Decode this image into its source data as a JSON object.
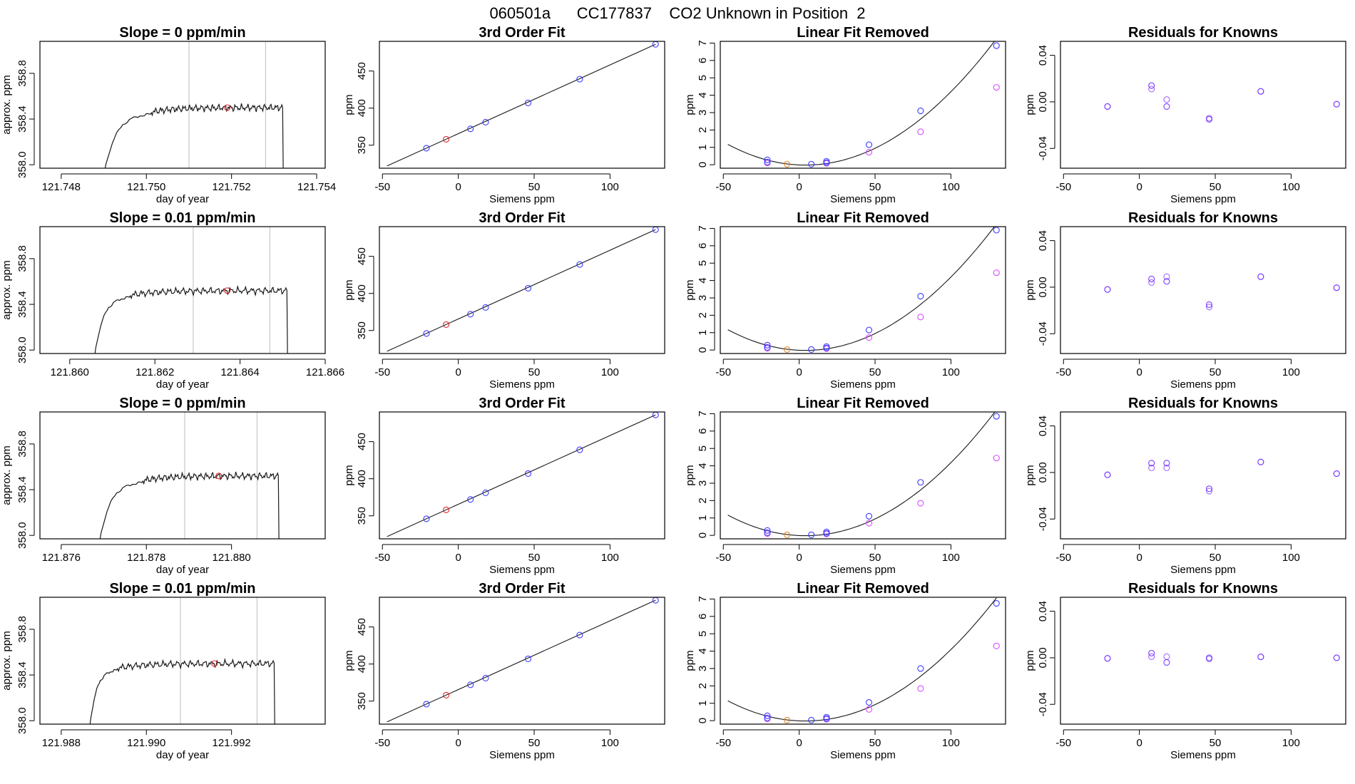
{
  "figure": {
    "title": "060501a      CC177837    CO2 Unknown in Position  2"
  },
  "chart_data": [
    {
      "type": "line",
      "title": "Slope =  0  ppm/min",
      "xlabel": "day of year",
      "ylabel": "approx. ppm",
      "xlim": [
        121.7475,
        121.7542
      ],
      "ylim": [
        357.97,
        359.08
      ],
      "xticks": [
        121.748,
        121.75,
        121.752,
        121.754
      ],
      "xticklabels": [
        "121.748",
        "121.750",
        "121.752",
        "121.754"
      ],
      "yticks": [
        358.0,
        358.4,
        358.8
      ],
      "yticklabels": [
        "358.0",
        "358.4",
        "358.8"
      ],
      "vlines": [
        121.751,
        121.7528
      ],
      "start": 121.7489,
      "plateau": 121.7501,
      "end": 121.7532,
      "level": 358.5,
      "marker": {
        "x": 121.7519,
        "y": 358.5
      }
    },
    {
      "type": "line",
      "title": "3rd Order Fit",
      "xlabel": "Siemens ppm",
      "ylabel": "ppm",
      "xlim": [
        -52,
        136
      ],
      "ylim": [
        319,
        490
      ],
      "xticks": [
        -50,
        0,
        50,
        100
      ],
      "xticklabels": [
        "-50",
        "0",
        "50",
        "100"
      ],
      "yticks": [
        350,
        400,
        450
      ],
      "yticklabels": [
        "350",
        "400",
        "450"
      ],
      "fit_x": [
        -47,
        130
      ],
      "fit_y": [
        322,
        486
      ],
      "known": {
        "x": [
          -21,
          8,
          18,
          46,
          80,
          130
        ],
        "y": [
          346,
          372,
          381,
          407,
          439,
          486
        ]
      },
      "unknown": {
        "x": [
          -8
        ],
        "y": [
          358
        ]
      }
    },
    {
      "type": "scatter",
      "title": "Linear Fit Removed",
      "xlabel": "Siemens ppm",
      "ylabel": "ppm",
      "xlim": [
        -52,
        136
      ],
      "ylim": [
        -0.2,
        7.1
      ],
      "xticks": [
        -50,
        0,
        50,
        100
      ],
      "xticklabels": [
        "-50",
        "0",
        "50",
        "100"
      ],
      "yticks": [
        0,
        1,
        2,
        3,
        4,
        5,
        6,
        7
      ],
      "yticklabels": [
        "0",
        "1",
        "2",
        "3",
        "4",
        "5",
        "6",
        "7"
      ],
      "fit_curve": {
        "x_from": -47,
        "x_to": 130,
        "vertex_x": 4,
        "vertex_y": -0.02,
        "a": 0.000458
      },
      "known": {
        "x": [
          -21,
          -21,
          8,
          18,
          18,
          46,
          80,
          130
        ],
        "y": [
          0.28,
          0.15,
          0.03,
          0.2,
          0.12,
          1.15,
          3.1,
          6.85
        ]
      },
      "raw": {
        "x": [
          -21,
          18,
          46,
          80,
          130
        ],
        "y": [
          0.1,
          0.08,
          0.72,
          1.9,
          4.45
        ]
      },
      "unknown": {
        "x": [
          -8
        ],
        "y": [
          0.03
        ]
      }
    },
    {
      "type": "scatter",
      "title": "Residuals for Knowns",
      "xlabel": "Siemens ppm",
      "ylabel": "ppm",
      "xlim": [
        -52,
        136
      ],
      "ylim": [
        -0.057,
        0.052
      ],
      "xticks": [
        -50,
        0,
        50,
        100
      ],
      "xticklabels": [
        "-50",
        "0",
        "50",
        "100"
      ],
      "yticks": [
        -0.04,
        0.0,
        0.04
      ],
      "yticklabels": [
        "-0.04",
        "0.00",
        "0.04"
      ],
      "set_a": {
        "x": [
          -21,
          8,
          18,
          46,
          80,
          130
        ],
        "y": [
          -0.004,
          0.014,
          -0.004,
          -0.015,
          0.009,
          -0.002
        ]
      },
      "set_b": {
        "x": [
          -21,
          8,
          18,
          46,
          80,
          130
        ],
        "y": [
          -0.004,
          0.011,
          0.002,
          -0.014,
          0.009,
          -0.002
        ]
      }
    },
    {
      "type": "line",
      "title": "Slope =  0.01  ppm/min",
      "xlabel": "day of year",
      "ylabel": "approx. ppm",
      "xlim": [
        121.8593,
        121.866
      ],
      "ylim": [
        357.97,
        359.08
      ],
      "xticks": [
        121.86,
        121.862,
        121.864,
        121.866
      ],
      "xticklabels": [
        "121.860",
        "121.862",
        "121.864",
        "121.866"
      ],
      "yticks": [
        358.0,
        358.4,
        358.8
      ],
      "yticklabels": [
        "358.0",
        "358.4",
        "358.8"
      ],
      "vlines": [
        121.8629,
        121.8647
      ],
      "start": 121.8605,
      "plateau": 121.8614,
      "end": 121.8651,
      "level": 358.52,
      "marker": {
        "x": 121.8637,
        "y": 358.52
      }
    },
    {
      "type": "line",
      "title": "3rd Order Fit",
      "xlabel": "Siemens ppm",
      "ylabel": "ppm",
      "xlim": [
        -52,
        136
      ],
      "ylim": [
        319,
        490
      ],
      "xticks": [
        -50,
        0,
        50,
        100
      ],
      "xticklabels": [
        "-50",
        "0",
        "50",
        "100"
      ],
      "yticks": [
        350,
        400,
        450
      ],
      "yticklabels": [
        "350",
        "400",
        "450"
      ],
      "fit_x": [
        -47,
        130
      ],
      "fit_y": [
        322,
        486
      ],
      "known": {
        "x": [
          -21,
          8,
          18,
          46,
          80,
          130
        ],
        "y": [
          346,
          372,
          381,
          407,
          439,
          486
        ]
      },
      "unknown": {
        "x": [
          -8
        ],
        "y": [
          358
        ]
      }
    },
    {
      "type": "scatter",
      "title": "Linear Fit Removed",
      "xlabel": "Siemens ppm",
      "ylabel": "ppm",
      "xlim": [
        -52,
        136
      ],
      "ylim": [
        -0.2,
        7.1
      ],
      "xticks": [
        -50,
        0,
        50,
        100
      ],
      "xticklabels": [
        "-50",
        "0",
        "50",
        "100"
      ],
      "yticks": [
        0,
        1,
        2,
        3,
        4,
        5,
        6,
        7
      ],
      "yticklabels": [
        "0",
        "1",
        "2",
        "3",
        "4",
        "5",
        "6",
        "7"
      ],
      "fit_curve": {
        "x_from": -47,
        "x_to": 130,
        "vertex_x": 4,
        "vertex_y": -0.02,
        "a": 0.000458
      },
      "known": {
        "x": [
          -21,
          -21,
          8,
          18,
          18,
          46,
          80,
          130
        ],
        "y": [
          0.28,
          0.15,
          0.03,
          0.2,
          0.12,
          1.15,
          3.1,
          6.9
        ]
      },
      "raw": {
        "x": [
          -21,
          18,
          46,
          80,
          130
        ],
        "y": [
          0.1,
          0.08,
          0.72,
          1.9,
          4.45
        ]
      },
      "unknown": {
        "x": [
          -8
        ],
        "y": [
          0.03
        ]
      }
    },
    {
      "type": "scatter",
      "title": "Residuals for Knowns",
      "xlabel": "Siemens ppm",
      "ylabel": "ppm",
      "xlim": [
        -52,
        136
      ],
      "ylim": [
        -0.057,
        0.052
      ],
      "xticks": [
        -50,
        0,
        50,
        100
      ],
      "xticklabels": [
        "-50",
        "0",
        "50",
        "100"
      ],
      "yticks": [
        -0.04,
        0.0,
        0.04
      ],
      "yticklabels": [
        "-0.04",
        "0.00",
        "0.04"
      ],
      "set_a": {
        "x": [
          -21,
          8,
          18,
          46,
          80,
          130
        ],
        "y": [
          -0.002,
          0.007,
          0.005,
          -0.015,
          0.009,
          -0.0005
        ]
      },
      "set_b": {
        "x": [
          -21,
          8,
          18,
          46,
          80,
          130
        ],
        "y": [
          -0.002,
          0.004,
          0.009,
          -0.017,
          0.009,
          -0.0005
        ]
      }
    },
    {
      "type": "line",
      "title": "Slope =  0  ppm/min",
      "xlabel": "day of year",
      "ylabel": "approx. ppm",
      "xlim": [
        121.8755,
        121.8822
      ],
      "ylim": [
        357.97,
        359.08
      ],
      "xticks": [
        121.876,
        121.878,
        121.88
      ],
      "xticklabels": [
        "121.876",
        "121.878",
        "121.880"
      ],
      "yticks": [
        358.0,
        358.4,
        358.8
      ],
      "yticklabels": [
        "358.0",
        "358.4",
        "358.8"
      ],
      "vlines": [
        121.8789,
        121.8806
      ],
      "start": 121.8768,
      "plateau": 121.8779,
      "end": 121.8811,
      "level": 358.52,
      "marker": {
        "x": 121.8797,
        "y": 358.52
      }
    },
    {
      "type": "line",
      "title": "3rd Order Fit",
      "xlabel": "Siemens ppm",
      "ylabel": "ppm",
      "xlim": [
        -52,
        136
      ],
      "ylim": [
        319,
        490
      ],
      "xticks": [
        -50,
        0,
        50,
        100
      ],
      "xticklabels": [
        "-50",
        "0",
        "50",
        "100"
      ],
      "yticks": [
        350,
        400,
        450
      ],
      "yticklabels": [
        "350",
        "400",
        "450"
      ],
      "fit_x": [
        -47,
        130
      ],
      "fit_y": [
        322,
        486
      ],
      "known": {
        "x": [
          -21,
          8,
          18,
          46,
          80,
          130
        ],
        "y": [
          346,
          372,
          381,
          407,
          439,
          486
        ]
      },
      "unknown": {
        "x": [
          -8
        ],
        "y": [
          358
        ]
      }
    },
    {
      "type": "scatter",
      "title": "Linear Fit Removed",
      "xlabel": "Siemens ppm",
      "ylabel": "ppm",
      "xlim": [
        -52,
        136
      ],
      "ylim": [
        -0.2,
        7.1
      ],
      "xticks": [
        -50,
        0,
        50,
        100
      ],
      "xticklabels": [
        "-50",
        "0",
        "50",
        "100"
      ],
      "yticks": [
        0,
        1,
        2,
        3,
        4,
        5,
        6,
        7
      ],
      "yticklabels": [
        "0",
        "1",
        "2",
        "3",
        "4",
        "5",
        "6",
        "7"
      ],
      "fit_curve": {
        "x_from": -47,
        "x_to": 130,
        "vertex_x": 4,
        "vertex_y": -0.02,
        "a": 0.000456
      },
      "known": {
        "x": [
          -21,
          -21,
          8,
          18,
          18,
          46,
          80,
          130
        ],
        "y": [
          0.28,
          0.15,
          0.03,
          0.2,
          0.12,
          1.1,
          3.05,
          6.85
        ]
      },
      "raw": {
        "x": [
          -21,
          18,
          46,
          80,
          130
        ],
        "y": [
          0.1,
          0.08,
          0.7,
          1.85,
          4.45
        ]
      },
      "unknown": {
        "x": [
          -8
        ],
        "y": [
          0.03
        ]
      }
    },
    {
      "type": "scatter",
      "title": "Residuals for Knowns",
      "xlabel": "Siemens ppm",
      "ylabel": "ppm",
      "xlim": [
        -52,
        136
      ],
      "ylim": [
        -0.057,
        0.052
      ],
      "xticks": [
        -50,
        0,
        50,
        100
      ],
      "xticklabels": [
        "-50",
        "0",
        "50",
        "100"
      ],
      "set_a": {
        "x": [
          -21,
          8,
          18,
          46,
          80,
          130
        ],
        "y": [
          -0.002,
          0.008,
          0.008,
          -0.014,
          0.009,
          -0.001
        ]
      },
      "set_b": {
        "x": [
          -21,
          8,
          18,
          46,
          80,
          130
        ],
        "y": [
          -0.002,
          0.004,
          0.004,
          -0.016,
          0.009,
          -0.001
        ]
      },
      "yticks": [
        -0.04,
        0.0,
        0.04
      ],
      "yticklabels": [
        "-0.04",
        "0.00",
        "0.04"
      ]
    },
    {
      "type": "line",
      "title": "Slope =  0.01  ppm/min",
      "xlabel": "day of year",
      "ylabel": "approx. ppm",
      "xlim": [
        121.9875,
        121.9942
      ],
      "ylim": [
        357.97,
        359.08
      ],
      "xticks": [
        121.988,
        121.99,
        121.992
      ],
      "xticklabels": [
        "121.988",
        "121.990",
        "121.992"
      ],
      "yticks": [
        358.0,
        358.4,
        358.8
      ],
      "yticklabels": [
        "358.0",
        "358.4",
        "358.8"
      ],
      "vlines": [
        121.9908,
        121.9926
      ],
      "start": 121.9886,
      "plateau": 121.9893,
      "end": 121.993,
      "level": 358.5,
      "marker": {
        "x": 121.9916,
        "y": 358.5
      }
    },
    {
      "type": "line",
      "title": "3rd Order Fit",
      "xlabel": "Siemens ppm",
      "ylabel": "ppm",
      "xlim": [
        -52,
        136
      ],
      "ylim": [
        319,
        490
      ],
      "xticks": [
        -50,
        0,
        50,
        100
      ],
      "xticklabels": [
        "-50",
        "0",
        "50",
        "100"
      ],
      "yticks": [
        350,
        400,
        450
      ],
      "yticklabels": [
        "350",
        "400",
        "450"
      ],
      "fit_x": [
        -47,
        130
      ],
      "fit_y": [
        322,
        486
      ],
      "known": {
        "x": [
          -21,
          8,
          18,
          46,
          80,
          130
        ],
        "y": [
          346,
          372,
          381,
          407,
          439,
          486
        ]
      },
      "unknown": {
        "x": [
          -8
        ],
        "y": [
          358
        ]
      }
    },
    {
      "type": "scatter",
      "title": "Linear Fit Removed",
      "xlabel": "Siemens ppm",
      "ylabel": "ppm",
      "xlim": [
        -52,
        136
      ],
      "ylim": [
        -0.2,
        7.1
      ],
      "xticks": [
        -50,
        0,
        50,
        100
      ],
      "xticklabels": [
        "-50",
        "0",
        "50",
        "100"
      ],
      "yticks": [
        0,
        1,
        2,
        3,
        4,
        5,
        6,
        7
      ],
      "yticklabels": [
        "0",
        "1",
        "2",
        "3",
        "4",
        "5",
        "6",
        "7"
      ],
      "fit_curve": {
        "x_from": -47,
        "x_to": 130,
        "vertex_x": 4,
        "vertex_y": -0.02,
        "a": 0.000446
      },
      "known": {
        "x": [
          -21,
          -21,
          8,
          18,
          18,
          46,
          80,
          130
        ],
        "y": [
          0.28,
          0.15,
          0.03,
          0.2,
          0.12,
          1.05,
          3.0,
          6.75
        ]
      },
      "raw": {
        "x": [
          -21,
          18,
          46,
          80,
          130
        ],
        "y": [
          0.1,
          0.08,
          0.65,
          1.85,
          4.3
        ]
      },
      "unknown": {
        "x": [
          -8
        ],
        "y": [
          0.03
        ]
      }
    },
    {
      "type": "scatter",
      "title": "Residuals for Knowns",
      "xlabel": "Siemens ppm",
      "ylabel": "ppm",
      "xlim": [
        -52,
        136
      ],
      "ylim": [
        -0.057,
        0.052
      ],
      "xticks": [
        -50,
        0,
        50,
        100
      ],
      "xticklabels": [
        "-50",
        "0",
        "50",
        "100"
      ],
      "yticks": [
        -0.04,
        0.0,
        0.04
      ],
      "yticklabels": [
        "-0.04",
        "0.00",
        "0.04"
      ],
      "set_a": {
        "x": [
          -21,
          8,
          18,
          46,
          80,
          130
        ],
        "y": [
          -0.0005,
          0.004,
          -0.004,
          0.0,
          0.0008,
          0.0
        ]
      },
      "set_b": {
        "x": [
          -21,
          8,
          18,
          46,
          80,
          130
        ],
        "y": [
          -0.0005,
          0.001,
          0.001,
          -0.001,
          0.0008,
          0.0
        ]
      }
    }
  ],
  "colors": {
    "known": "#3b3bff",
    "raw": "#d84dff",
    "unknown_fit": "#e08a2a",
    "marker": "#e02a2a",
    "series": "#1a1a1a",
    "vline": "#c8c8c8",
    "residual_a": "#7a3bff",
    "residual_b": "#a06bff"
  }
}
